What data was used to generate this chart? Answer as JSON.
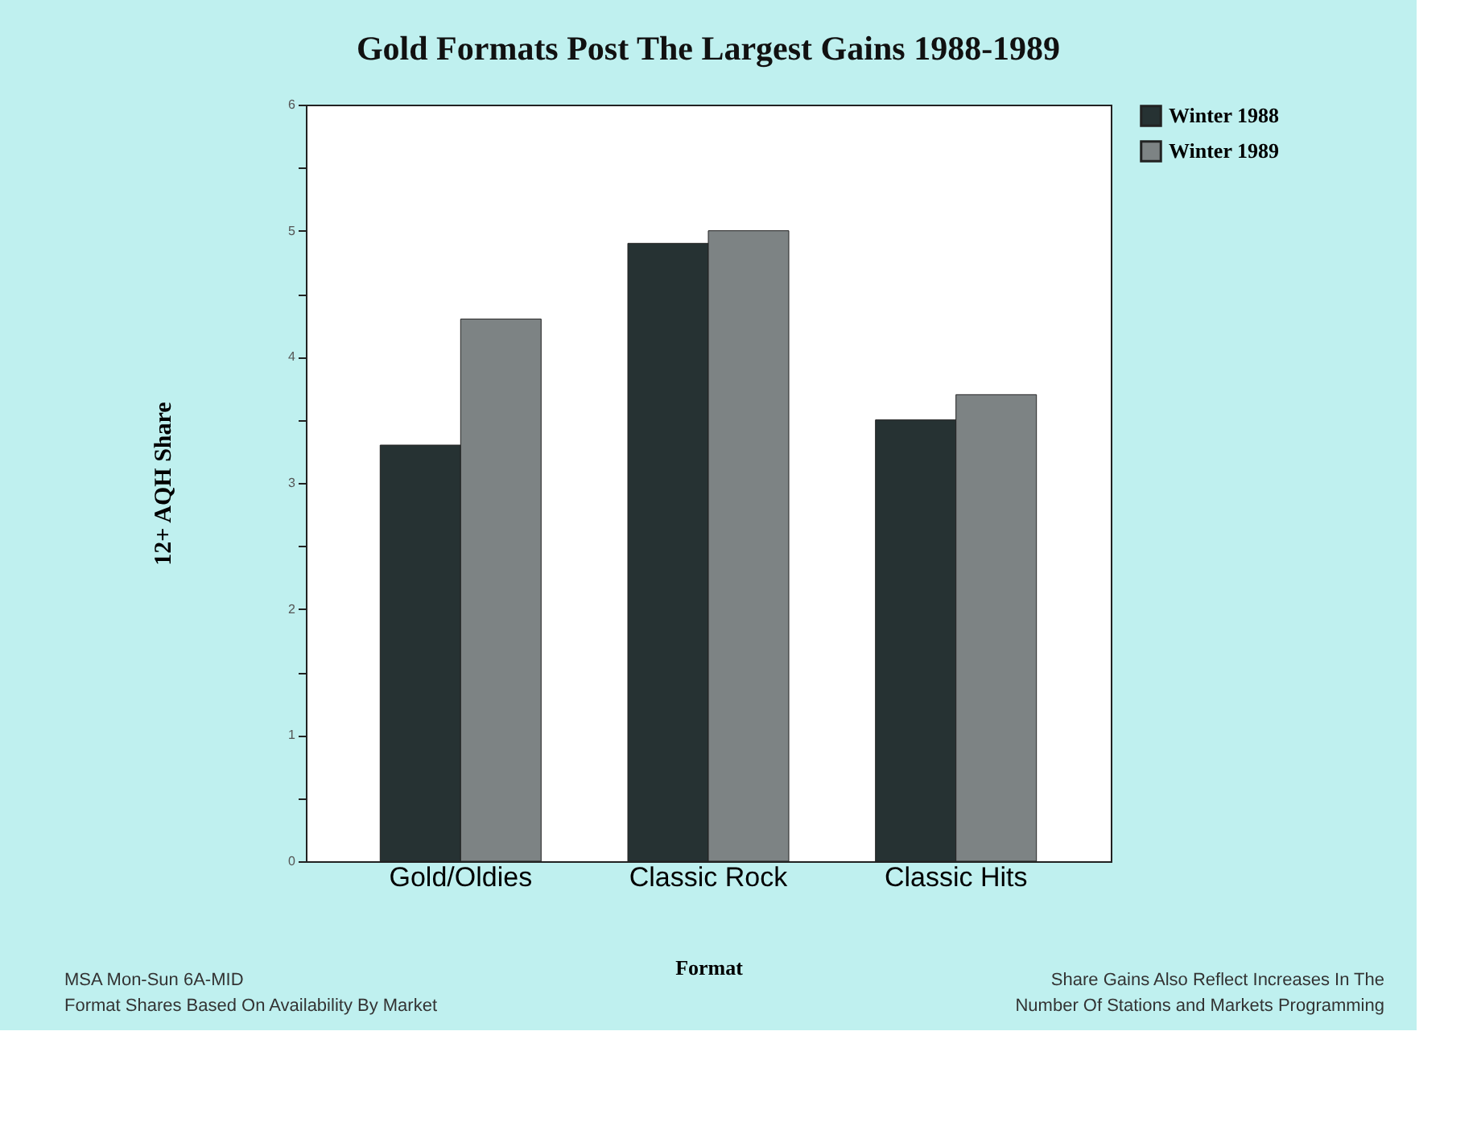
{
  "chart_data": {
    "type": "bar",
    "title": "Gold Formats Post The Largest Gains 1988-1989",
    "xlabel": "Format",
    "ylabel": "12+ AQH Share",
    "categories": [
      "Gold/Oldies",
      "Classic Rock",
      "Classic Hits"
    ],
    "series": [
      {
        "name": "Winter 1988",
        "color": "#263233",
        "values": [
          3.3,
          4.9,
          3.5
        ]
      },
      {
        "name": "Winter 1989",
        "color": "#7d8384",
        "values": [
          4.3,
          5.0,
          3.7
        ]
      }
    ],
    "ylim": [
      0,
      6
    ],
    "yticks": [
      0,
      {
        "value": 0.5,
        "label": null
      },
      1,
      {
        "value": 1.5,
        "label": null
      },
      2,
      {
        "value": 2.5,
        "label": null
      },
      3,
      {
        "value": 3.5,
        "label": null
      },
      4,
      {
        "value": 4.5,
        "label": null
      },
      5,
      {
        "value": 5.5,
        "label": null
      },
      6
    ],
    "grid": false,
    "legend": "right",
    "annotations": [
      "MSA Mon-Sun 6A-MID",
      "Format Shares Based On Availability By Market",
      "Share Gains Also Reflect Increases In The",
      "Number Of Stations and Markets Programming"
    ]
  }
}
